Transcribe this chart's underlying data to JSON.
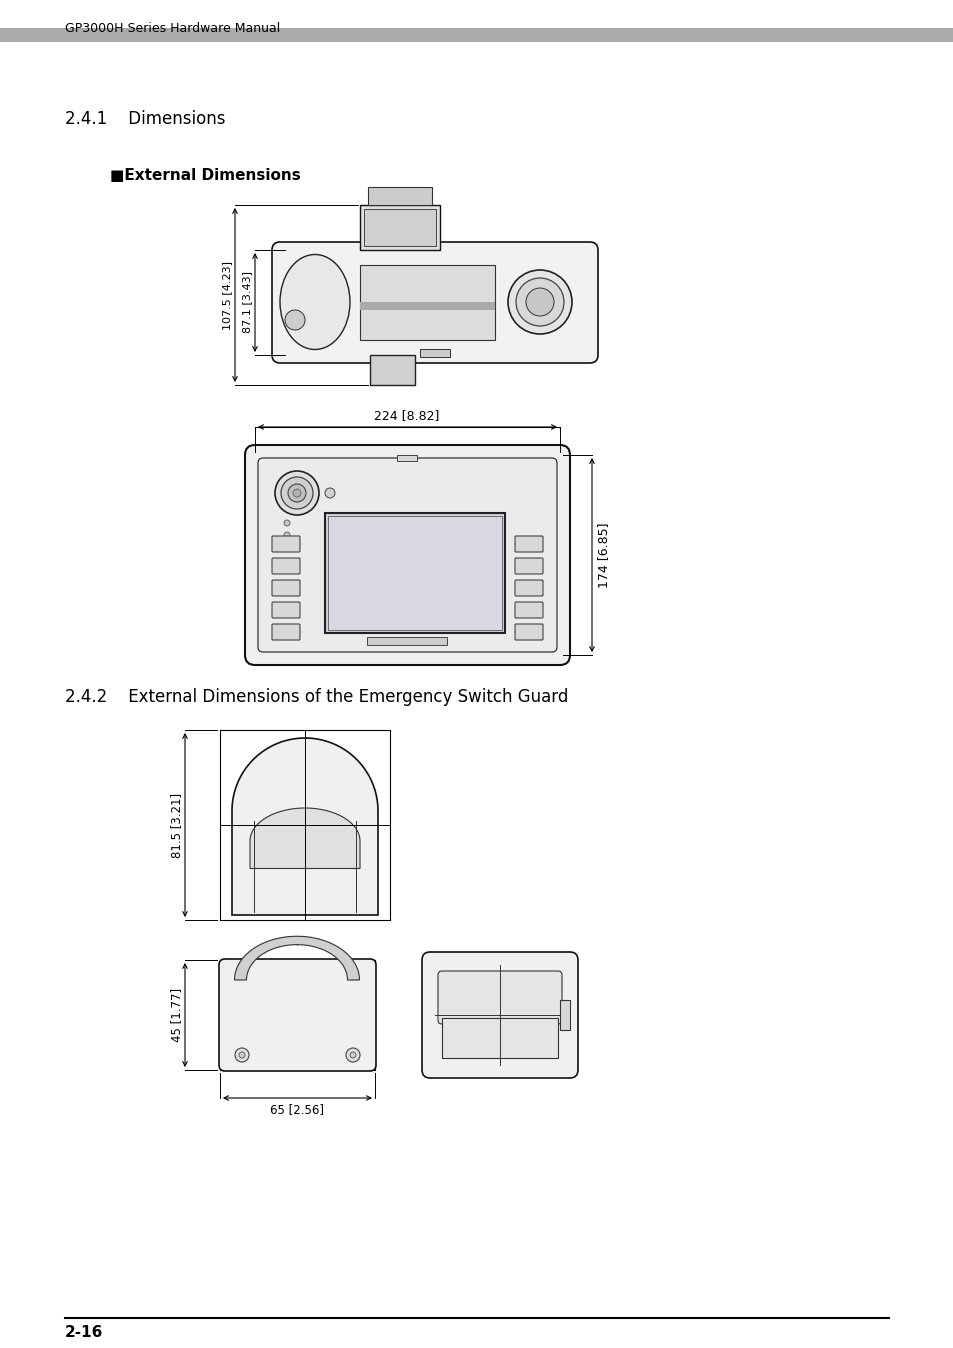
{
  "page_title": "GP3000H Series Hardware Manual",
  "header_bar_color": "#aaaaaa",
  "footer_text": "2-16",
  "section_241_title": "2.4.1    Dimensions",
  "subsection_title": "■External Dimensions",
  "section_242_title": "2.4.2    External Dimensions of the Emergency Switch Guard",
  "dim_side_label1": "107.5 [4.23]",
  "dim_side_label2": "87.1 [3.43]",
  "dim_front_width": "224 [8.82]",
  "dim_front_height": "174 [6.85]",
  "dim_guard_height": "81.5 [3.21]",
  "dim_guard_bottom_h": "45 [1.77]",
  "dim_guard_bottom_w": "65 [2.56]",
  "bg_color": "#ffffff",
  "text_color": "#000000",
  "line_color": "#000000"
}
